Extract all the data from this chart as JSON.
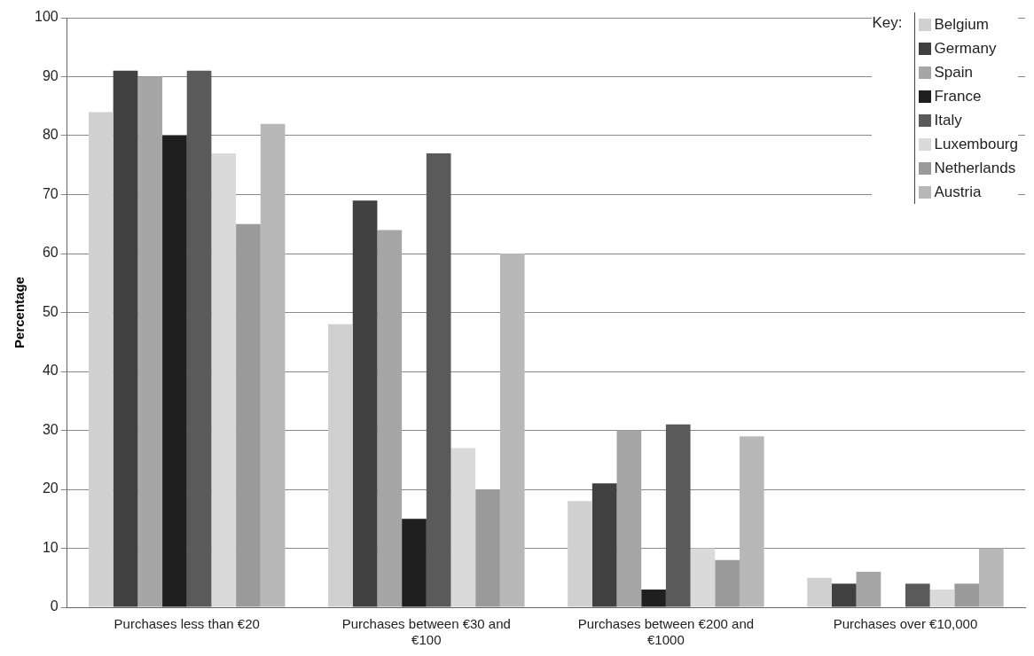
{
  "chart_data": {
    "type": "bar",
    "ylabel": "Percentage",
    "legend_title": "Key:",
    "legend": "top right",
    "grid": "y",
    "categories": [
      "Purchases less than €20",
      "Purchases between €30 and €100",
      "Purchases between €200 and €1000",
      "Purchases over €10,000"
    ],
    "ylim": [
      0,
      100
    ],
    "yticks": [
      0,
      10,
      20,
      30,
      40,
      50,
      60,
      70,
      80,
      90,
      100
    ],
    "series": [
      {
        "name": "Belgium",
        "color": "#d0d0d0",
        "values": [
          84,
          48,
          18,
          5
        ]
      },
      {
        "name": "Germany",
        "color": "#404040",
        "values": [
          91,
          69,
          21,
          4
        ]
      },
      {
        "name": "Spain",
        "color": "#a6a6a6",
        "values": [
          90,
          64,
          30,
          6
        ]
      },
      {
        "name": "France",
        "color": "#1f1f1f",
        "values": [
          80,
          15,
          3,
          0
        ]
      },
      {
        "name": "Italy",
        "color": "#5a5a5a",
        "values": [
          91,
          77,
          31,
          4
        ]
      },
      {
        "name": "Luxembourg",
        "color": "#dadada",
        "values": [
          77,
          27,
          10,
          3
        ]
      },
      {
        "name": "Netherlands",
        "color": "#9a9a9a",
        "values": [
          65,
          20,
          8,
          4
        ]
      },
      {
        "name": "Austria",
        "color": "#b8b8b8",
        "values": [
          82,
          60,
          29,
          10
        ]
      }
    ]
  }
}
